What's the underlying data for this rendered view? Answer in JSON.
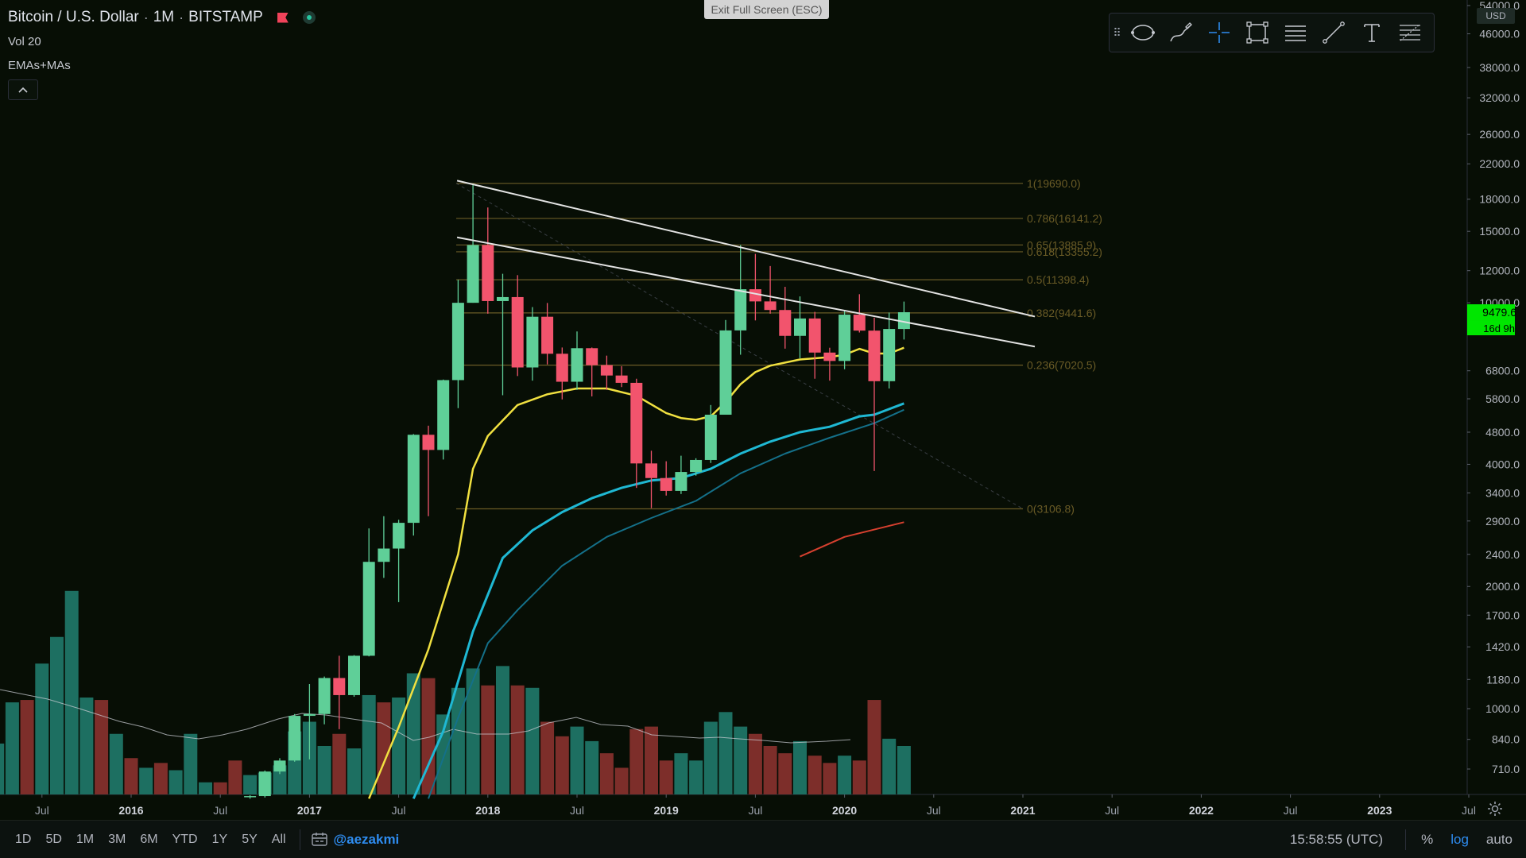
{
  "header": {
    "symbol": "Bitcoin / U.S. Dollar",
    "interval": "1M",
    "exchange": "BITSTAMP",
    "vol_label": "Vol 20",
    "indicator_label": "EMAs+MAs",
    "exit_fullscreen": "Exit Full Screen (ESC)"
  },
  "toolbar": {
    "tools": [
      "ellipse-icon",
      "brush-icon",
      "crosshair-icon",
      "rectangle-icon",
      "horizontal-lines-icon",
      "trend-line-icon",
      "text-icon",
      "fib-icon"
    ]
  },
  "price_axis": {
    "currency": "USD",
    "ticks": [
      "54000.0",
      "46000.0",
      "38000.0",
      "32000.0",
      "26000.0",
      "22000.0",
      "18000.0",
      "15000.0",
      "12000.0",
      "10000.0",
      "6800.0",
      "5800.0",
      "4800.0",
      "4000.0",
      "3400.0",
      "2900.0",
      "2400.0",
      "2000.0",
      "1700.0",
      "1420.0",
      "1180.0",
      "1000.0",
      "840.0",
      "710.0"
    ],
    "last_price": "9479.6",
    "countdown": "16d 9h",
    "last_price_color": "#00e600"
  },
  "time_axis": {
    "labels": [
      "Jul",
      "2016",
      "Jul",
      "2017",
      "Jul",
      "2018",
      "Jul",
      "2019",
      "Jul",
      "2020",
      "Jul",
      "2021",
      "Jul",
      "2022",
      "Jul",
      "2023",
      "Jul"
    ]
  },
  "fib_levels": [
    {
      "label": "1(19690.0)",
      "price": 19690.0
    },
    {
      "label": "0.786(16141.2)",
      "price": 16141.2
    },
    {
      "label": "0.65(13885.9)",
      "price": 13885.9
    },
    {
      "label": "0.618(13355.2)",
      "price": 13355.2
    },
    {
      "label": "0.5(11398.4)",
      "price": 11398.4
    },
    {
      "label": "0.382(9441.6)",
      "price": 9441.6
    },
    {
      "label": "0.236(7020.5)",
      "price": 7020.5
    },
    {
      "label": "0(3106.8)",
      "price": 3106.8
    }
  ],
  "chart_data": {
    "type": "candlestick",
    "y_scale": "log",
    "ylim": [
      600,
      54000
    ],
    "candles": [
      {
        "t": "2016-09",
        "o": 607,
        "h": 612,
        "l": 600,
        "c": 609
      },
      {
        "t": "2016-10",
        "o": 609,
        "h": 704,
        "l": 604,
        "c": 700
      },
      {
        "t": "2016-11",
        "o": 700,
        "h": 755,
        "l": 690,
        "c": 745
      },
      {
        "t": "2016-12",
        "o": 745,
        "h": 970,
        "l": 740,
        "c": 960
      },
      {
        "t": "2017-01",
        "o": 960,
        "h": 1150,
        "l": 750,
        "c": 970
      },
      {
        "t": "2017-02",
        "o": 970,
        "h": 1200,
        "l": 915,
        "c": 1190
      },
      {
        "t": "2017-03",
        "o": 1190,
        "h": 1350,
        "l": 890,
        "c": 1080
      },
      {
        "t": "2017-04",
        "o": 1080,
        "h": 1355,
        "l": 1070,
        "c": 1350
      },
      {
        "t": "2017-05",
        "o": 1350,
        "h": 2780,
        "l": 1345,
        "c": 2300
      },
      {
        "t": "2017-06",
        "o": 2300,
        "h": 2980,
        "l": 2100,
        "c": 2480
      },
      {
        "t": "2017-07",
        "o": 2480,
        "h": 2920,
        "l": 1830,
        "c": 2870
      },
      {
        "t": "2017-08",
        "o": 2870,
        "h": 4750,
        "l": 2670,
        "c": 4730
      },
      {
        "t": "2017-09",
        "o": 4730,
        "h": 4980,
        "l": 2980,
        "c": 4340
      },
      {
        "t": "2017-10",
        "o": 4340,
        "h": 6470,
        "l": 4110,
        "c": 6450
      },
      {
        "t": "2017-11",
        "o": 6450,
        "h": 11400,
        "l": 5500,
        "c": 10000
      },
      {
        "t": "2017-12",
        "o": 10000,
        "h": 19690,
        "l": 10000,
        "c": 13880
      },
      {
        "t": "2018-01",
        "o": 13880,
        "h": 17180,
        "l": 9400,
        "c": 10100
      },
      {
        "t": "2018-02",
        "o": 10100,
        "h": 11790,
        "l": 5920,
        "c": 10330
      },
      {
        "t": "2018-03",
        "o": 10330,
        "h": 11700,
        "l": 6600,
        "c": 6930
      },
      {
        "t": "2018-04",
        "o": 6930,
        "h": 9760,
        "l": 6430,
        "c": 9240
      },
      {
        "t": "2018-05",
        "o": 9240,
        "h": 9990,
        "l": 7050,
        "c": 7490
      },
      {
        "t": "2018-06",
        "o": 7490,
        "h": 7760,
        "l": 5780,
        "c": 6390
      },
      {
        "t": "2018-07",
        "o": 6390,
        "h": 8500,
        "l": 6100,
        "c": 7730
      },
      {
        "t": "2018-08",
        "o": 7730,
        "h": 7760,
        "l": 5880,
        "c": 7020
      },
      {
        "t": "2018-09",
        "o": 7020,
        "h": 7410,
        "l": 6100,
        "c": 6620
      },
      {
        "t": "2018-10",
        "o": 6620,
        "h": 6980,
        "l": 6200,
        "c": 6350
      },
      {
        "t": "2018-11",
        "o": 6350,
        "h": 6500,
        "l": 3500,
        "c": 4020
      },
      {
        "t": "2018-12",
        "o": 4020,
        "h": 4320,
        "l": 3120,
        "c": 3700
      },
      {
        "t": "2019-01",
        "o": 3700,
        "h": 4070,
        "l": 3350,
        "c": 3440
      },
      {
        "t": "2019-02",
        "o": 3440,
        "h": 4200,
        "l": 3380,
        "c": 3830
      },
      {
        "t": "2019-03",
        "o": 3830,
        "h": 4140,
        "l": 3750,
        "c": 4100
      },
      {
        "t": "2019-04",
        "o": 4100,
        "h": 5600,
        "l": 4030,
        "c": 5300
      },
      {
        "t": "2019-05",
        "o": 5300,
        "h": 9070,
        "l": 5300,
        "c": 8550
      },
      {
        "t": "2019-06",
        "o": 8550,
        "h": 13880,
        "l": 7450,
        "c": 10800
      },
      {
        "t": "2019-07",
        "o": 10800,
        "h": 13200,
        "l": 9050,
        "c": 10080
      },
      {
        "t": "2019-08",
        "o": 10080,
        "h": 12320,
        "l": 9400,
        "c": 9600
      },
      {
        "t": "2019-09",
        "o": 9600,
        "h": 10950,
        "l": 7710,
        "c": 8290
      },
      {
        "t": "2019-10",
        "o": 8290,
        "h": 10370,
        "l": 7300,
        "c": 9150
      },
      {
        "t": "2019-11",
        "o": 9150,
        "h": 9500,
        "l": 6500,
        "c": 7540
      },
      {
        "t": "2019-12",
        "o": 7540,
        "h": 7750,
        "l": 6430,
        "c": 7190
      },
      {
        "t": "2020-01",
        "o": 7190,
        "h": 9580,
        "l": 6860,
        "c": 9350
      },
      {
        "t": "2020-02",
        "o": 9350,
        "h": 10500,
        "l": 8450,
        "c": 8540
      },
      {
        "t": "2020-03",
        "o": 8540,
        "h": 9190,
        "l": 3850,
        "c": 6410
      },
      {
        "t": "2020-04",
        "o": 6410,
        "h": 9460,
        "l": 6150,
        "c": 8620
      },
      {
        "t": "2020-05",
        "o": 8620,
        "h": 10070,
        "l": 8120,
        "c": 9480
      }
    ],
    "volume": [
      {
        "t": "2015-02",
        "v": 0.28,
        "up": false
      },
      {
        "t": "2015-03",
        "v": 0.2,
        "up": true
      },
      {
        "t": "2015-04",
        "v": 0.21,
        "up": true
      },
      {
        "t": "2015-05",
        "v": 0.38,
        "up": true
      },
      {
        "t": "2015-06",
        "v": 0.39,
        "up": false
      },
      {
        "t": "2015-07",
        "v": 0.54,
        "up": true
      },
      {
        "t": "2015-08",
        "v": 0.65,
        "up": true
      },
      {
        "t": "2015-09",
        "v": 0.84,
        "up": true
      },
      {
        "t": "2015-10",
        "v": 0.4,
        "up": true
      },
      {
        "t": "2015-11",
        "v": 0.39,
        "up": false
      },
      {
        "t": "2015-12",
        "v": 0.25,
        "up": true
      },
      {
        "t": "2016-01",
        "v": 0.15,
        "up": false
      },
      {
        "t": "2016-02",
        "v": 0.11,
        "up": true
      },
      {
        "t": "2016-03",
        "v": 0.13,
        "up": false
      },
      {
        "t": "2016-04",
        "v": 0.1,
        "up": true
      },
      {
        "t": "2016-05",
        "v": 0.25,
        "up": true
      },
      {
        "t": "2016-06",
        "v": 0.05,
        "up": true
      },
      {
        "t": "2016-07",
        "v": 0.05,
        "up": false
      },
      {
        "t": "2016-08",
        "v": 0.14,
        "up": false
      },
      {
        "t": "2016-09",
        "v": 0.08,
        "up": true
      },
      {
        "t": "2016-10",
        "v": 0.09,
        "up": true
      },
      {
        "t": "2016-11",
        "v": 0.12,
        "up": true
      },
      {
        "t": "2016-12",
        "v": 0.26,
        "up": true
      },
      {
        "t": "2017-01",
        "v": 0.3,
        "up": true
      },
      {
        "t": "2017-02",
        "v": 0.2,
        "up": true
      },
      {
        "t": "2017-03",
        "v": 0.25,
        "up": false
      },
      {
        "t": "2017-04",
        "v": 0.19,
        "up": true
      },
      {
        "t": "2017-05",
        "v": 0.41,
        "up": true
      },
      {
        "t": "2017-06",
        "v": 0.38,
        "up": false
      },
      {
        "t": "2017-07",
        "v": 0.4,
        "up": true
      },
      {
        "t": "2017-08",
        "v": 0.5,
        "up": true
      },
      {
        "t": "2017-09",
        "v": 0.48,
        "up": false
      },
      {
        "t": "2017-10",
        "v": 0.33,
        "up": true
      },
      {
        "t": "2017-11",
        "v": 0.44,
        "up": true
      },
      {
        "t": "2017-12",
        "v": 0.52,
        "up": true
      },
      {
        "t": "2018-01",
        "v": 0.45,
        "up": false
      },
      {
        "t": "2018-02",
        "v": 0.53,
        "up": true
      },
      {
        "t": "2018-03",
        "v": 0.45,
        "up": false
      },
      {
        "t": "2018-04",
        "v": 0.44,
        "up": true
      },
      {
        "t": "2018-05",
        "v": 0.3,
        "up": false
      },
      {
        "t": "2018-06",
        "v": 0.24,
        "up": false
      },
      {
        "t": "2018-07",
        "v": 0.28,
        "up": true
      },
      {
        "t": "2018-08",
        "v": 0.22,
        "up": true
      },
      {
        "t": "2018-09",
        "v": 0.17,
        "up": false
      },
      {
        "t": "2018-10",
        "v": 0.11,
        "up": false
      },
      {
        "t": "2018-11",
        "v": 0.27,
        "up": false
      },
      {
        "t": "2018-12",
        "v": 0.28,
        "up": false
      },
      {
        "t": "2019-01",
        "v": 0.14,
        "up": false
      },
      {
        "t": "2019-02",
        "v": 0.17,
        "up": true
      },
      {
        "t": "2019-03",
        "v": 0.14,
        "up": true
      },
      {
        "t": "2019-04",
        "v": 0.3,
        "up": true
      },
      {
        "t": "2019-05",
        "v": 0.34,
        "up": true
      },
      {
        "t": "2019-06",
        "v": 0.28,
        "up": true
      },
      {
        "t": "2019-07",
        "v": 0.25,
        "up": false
      },
      {
        "t": "2019-08",
        "v": 0.2,
        "up": false
      },
      {
        "t": "2019-09",
        "v": 0.17,
        "up": false
      },
      {
        "t": "2019-10",
        "v": 0.22,
        "up": true
      },
      {
        "t": "2019-11",
        "v": 0.16,
        "up": false
      },
      {
        "t": "2019-12",
        "v": 0.13,
        "up": false
      },
      {
        "t": "2020-01",
        "v": 0.16,
        "up": true
      },
      {
        "t": "2020-02",
        "v": 0.14,
        "up": false
      },
      {
        "t": "2020-03",
        "v": 0.39,
        "up": false
      },
      {
        "t": "2020-04",
        "v": 0.23,
        "up": true
      },
      {
        "t": "2020-05",
        "v": 0.2,
        "up": true
      }
    ],
    "ma_yellow": [
      {
        "t": "2017-05",
        "v": 600
      },
      {
        "t": "2017-07",
        "v": 900
      },
      {
        "t": "2017-09",
        "v": 1400
      },
      {
        "t": "2017-11",
        "v": 2400
      },
      {
        "t": "2017-12",
        "v": 3900
      },
      {
        "t": "2018-01",
        "v": 4700
      },
      {
        "t": "2018-03",
        "v": 5600
      },
      {
        "t": "2018-05",
        "v": 5950
      },
      {
        "t": "2018-07",
        "v": 6150
      },
      {
        "t": "2018-09",
        "v": 6150
      },
      {
        "t": "2018-11",
        "v": 5900
      },
      {
        "t": "2019-01",
        "v": 5350
      },
      {
        "t": "2019-02",
        "v": 5200
      },
      {
        "t": "2019-03",
        "v": 5150
      },
      {
        "t": "2019-04",
        "v": 5250
      },
      {
        "t": "2019-05",
        "v": 5700
      },
      {
        "t": "2019-06",
        "v": 6300
      },
      {
        "t": "2019-07",
        "v": 6750
      },
      {
        "t": "2019-08",
        "v": 7000
      },
      {
        "t": "2019-10",
        "v": 7250
      },
      {
        "t": "2019-12",
        "v": 7350
      },
      {
        "t": "2020-01",
        "v": 7450
      },
      {
        "t": "2020-02",
        "v": 7700
      },
      {
        "t": "2020-03",
        "v": 7500
      },
      {
        "t": "2020-04",
        "v": 7500
      },
      {
        "t": "2020-05",
        "v": 7750
      }
    ],
    "ema_cyan": [
      {
        "t": "2017-08",
        "v": 600
      },
      {
        "t": "2017-10",
        "v": 880
      },
      {
        "t": "2017-12",
        "v": 1550
      },
      {
        "t": "2018-02",
        "v": 2350
      },
      {
        "t": "2018-04",
        "v": 2750
      },
      {
        "t": "2018-06",
        "v": 3050
      },
      {
        "t": "2018-08",
        "v": 3300
      },
      {
        "t": "2018-10",
        "v": 3500
      },
      {
        "t": "2018-12",
        "v": 3650
      },
      {
        "t": "2019-02",
        "v": 3700
      },
      {
        "t": "2019-04",
        "v": 3900
      },
      {
        "t": "2019-06",
        "v": 4250
      },
      {
        "t": "2019-08",
        "v": 4550
      },
      {
        "t": "2019-10",
        "v": 4800
      },
      {
        "t": "2019-12",
        "v": 4950
      },
      {
        "t": "2020-02",
        "v": 5250
      },
      {
        "t": "2020-03",
        "v": 5300
      },
      {
        "t": "2020-05",
        "v": 5650
      }
    ],
    "ema_teal": [
      {
        "t": "2017-09",
        "v": 600
      },
      {
        "t": "2017-11",
        "v": 950
      },
      {
        "t": "2018-01",
        "v": 1450
      },
      {
        "t": "2018-03",
        "v": 1750
      },
      {
        "t": "2018-06",
        "v": 2250
      },
      {
        "t": "2018-09",
        "v": 2650
      },
      {
        "t": "2018-12",
        "v": 2950
      },
      {
        "t": "2019-03",
        "v": 3250
      },
      {
        "t": "2019-06",
        "v": 3800
      },
      {
        "t": "2019-09",
        "v": 4250
      },
      {
        "t": "2019-12",
        "v": 4650
      },
      {
        "t": "2020-03",
        "v": 5050
      },
      {
        "t": "2020-05",
        "v": 5450
      }
    ],
    "ma_red": [
      {
        "t": "2019-10",
        "v": 2370
      },
      {
        "t": "2020-01",
        "v": 2650
      },
      {
        "t": "2020-05",
        "v": 2880
      }
    ],
    "trendlines": [
      {
        "name": "upper-trendline",
        "from": {
          "t": "2017-12",
          "p": 20000
        },
        "to": {
          "t": "2021-01",
          "p": 9250
        }
      },
      {
        "name": "lower-trendline",
        "from": {
          "t": "2017-12",
          "p": 14500
        },
        "to": {
          "t": "2021-01",
          "p": 7800
        }
      }
    ],
    "fib_start": {
      "t": "2017-09",
      "p": 19690
    },
    "fib_end": {
      "t": "2021-01",
      "p": 3106.8
    }
  },
  "bottom_bar": {
    "ranges": [
      "1D",
      "5D",
      "1M",
      "3M",
      "6M",
      "YTD",
      "1Y",
      "5Y",
      "All"
    ],
    "author": "@aezakmi",
    "clock": "15:58:55 (UTC)",
    "percent": "%",
    "log": "log",
    "auto": "auto"
  },
  "colors": {
    "bg": "#070e05",
    "up": "#5fcf98",
    "down": "#f2546d",
    "vol_up": "#1d6f61",
    "vol_down": "#7d2e2a",
    "fib": "#6a5b26",
    "ma_yellow": "#f0e040",
    "ema_cyan": "#1fb8d3",
    "ema_teal": "#147089",
    "ma_red": "#d6402f"
  }
}
